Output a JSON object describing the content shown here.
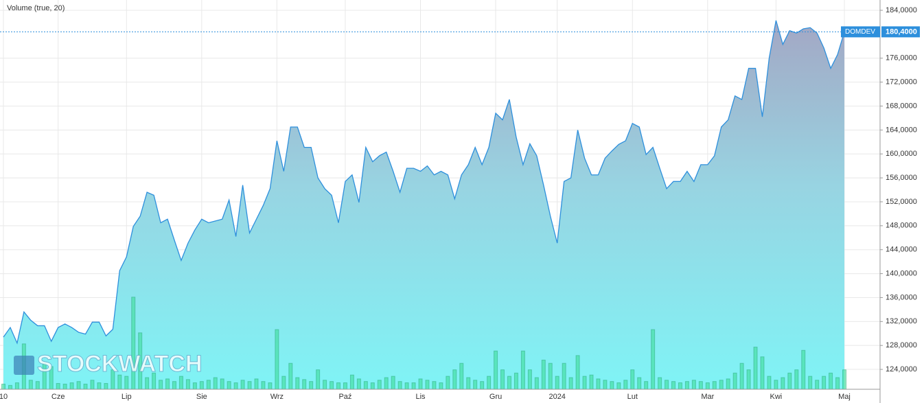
{
  "chart_data": {
    "type": "area",
    "legend_label": "Volume (true, 20)",
    "watermark": "STOCKWATCH",
    "categories": [
      "10",
      null,
      null,
      null,
      null,
      null,
      null,
      null,
      "Cze",
      null,
      null,
      null,
      null,
      null,
      null,
      null,
      null,
      null,
      "Lip",
      null,
      null,
      null,
      null,
      null,
      null,
      null,
      null,
      null,
      null,
      "Sie",
      null,
      null,
      null,
      null,
      null,
      null,
      null,
      null,
      null,
      null,
      "Wrz",
      null,
      null,
      null,
      null,
      null,
      null,
      null,
      null,
      null,
      "Paź",
      null,
      null,
      null,
      null,
      null,
      null,
      null,
      null,
      null,
      null,
      "Lis",
      null,
      null,
      null,
      null,
      null,
      null,
      null,
      null,
      null,
      null,
      "Gru",
      null,
      null,
      null,
      null,
      null,
      null,
      null,
      null,
      "2024",
      null,
      null,
      null,
      null,
      null,
      null,
      null,
      null,
      null,
      null,
      "Lut",
      null,
      null,
      null,
      null,
      null,
      null,
      null,
      null,
      null,
      null,
      "Mar",
      null,
      null,
      null,
      null,
      null,
      null,
      null,
      null,
      null,
      "Kwi",
      null,
      null,
      null,
      null,
      null,
      null,
      null,
      null,
      null,
      "Maj"
    ],
    "series": [
      {
        "name": "DOMDEV",
        "color": "#2d8fdc",
        "values": [
          129.4,
          131,
          128.4,
          133.6,
          132.2,
          131.3,
          131.3,
          128.7,
          131,
          131.6,
          131,
          130.2,
          129.9,
          131.9,
          131.9,
          129.6,
          130.7,
          140.5,
          142.8,
          147.9,
          149.6,
          153.6,
          153.1,
          148.5,
          149.1,
          145.6,
          142.2,
          145.1,
          147.3,
          149.1,
          148.5,
          148.8,
          149.1,
          152.3,
          146.2,
          154.8,
          146.8,
          149.1,
          151.4,
          154.2,
          162.2,
          157.1,
          164.5,
          164.5,
          161.1,
          161.1,
          156,
          154.2,
          153.1,
          148.5,
          155.4,
          156.5,
          151.9,
          161.1,
          158.7,
          159.7,
          160.3,
          157.1,
          153.6,
          157.6,
          157.6,
          157.1,
          158,
          156.5,
          157.1,
          156.5,
          152.5,
          156.5,
          158.2,
          161.1,
          158.2,
          161.1,
          166.8,
          165.7,
          169.1,
          162.8,
          158.2,
          161.7,
          159.7,
          154.8,
          149.6,
          145.1,
          155.4,
          156,
          164,
          159.3,
          156.5,
          156.5,
          159.3,
          160.5,
          161.6,
          162.2,
          165.1,
          164.5,
          159.9,
          161.1,
          157.6,
          154.2,
          155.4,
          155.4,
          157.1,
          155.4,
          158.2,
          158.2,
          159.7,
          164.5,
          165.7,
          169.7,
          169.1,
          174.3,
          174.3,
          166.2,
          176,
          182.3,
          178.3,
          180.6,
          180.2,
          180.9,
          181.1,
          180.2,
          177.7,
          174.3,
          176.6,
          180.4
        ]
      },
      {
        "name": "Volume (true, 20)",
        "axis": "y2",
        "color": "#3ddc97",
        "values": [
          8,
          6,
          10,
          70,
          14,
          12,
          40,
          35,
          9,
          8,
          10,
          12,
          8,
          14,
          10,
          9,
          30,
          22,
          20,
          142,
          87,
          18,
          25,
          14,
          16,
          12,
          20,
          15,
          10,
          12,
          14,
          18,
          16,
          12,
          10,
          14,
          12,
          16,
          12,
          10,
          92,
          20,
          40,
          18,
          15,
          12,
          30,
          14,
          12,
          10,
          10,
          22,
          16,
          12,
          10,
          14,
          18,
          20,
          12,
          10,
          10,
          16,
          14,
          12,
          10,
          20,
          30,
          40,
          18,
          14,
          12,
          20,
          59,
          30,
          20,
          25,
          59,
          30,
          18,
          45,
          40,
          20,
          40,
          18,
          52,
          20,
          22,
          16,
          14,
          12,
          10,
          14,
          30,
          18,
          12,
          92,
          18,
          14,
          12,
          10,
          12,
          14,
          12,
          10,
          12,
          14,
          16,
          25,
          40,
          30,
          65,
          50,
          20,
          14,
          18,
          25,
          30,
          60,
          20,
          14,
          20,
          25,
          18,
          30
        ]
      }
    ],
    "current": {
      "value": 180.4,
      "label": "180,4000"
    },
    "ylim": [
      120.68,
      185.72
    ],
    "yticks": [
      {
        "value": 124,
        "label": "124,0000"
      },
      {
        "value": 128,
        "label": "128,0000"
      },
      {
        "value": 132,
        "label": "132,0000"
      },
      {
        "value": 136,
        "label": "136,0000"
      },
      {
        "value": 140,
        "label": "140,0000"
      },
      {
        "value": 144,
        "label": "144,0000"
      },
      {
        "value": 148,
        "label": "148,0000"
      },
      {
        "value": 152,
        "label": "152,0000"
      },
      {
        "value": 156,
        "label": "156,0000"
      },
      {
        "value": 160,
        "label": "160,0000"
      },
      {
        "value": 164,
        "label": "164,0000"
      },
      {
        "value": 168,
        "label": "168,0000"
      },
      {
        "value": 172,
        "label": "172,0000"
      },
      {
        "value": 176,
        "label": "176,0000"
      },
      {
        "value": 184,
        "label": "184,0000"
      }
    ],
    "y2lim": [
      0,
      600
    ],
    "grid": true
  }
}
